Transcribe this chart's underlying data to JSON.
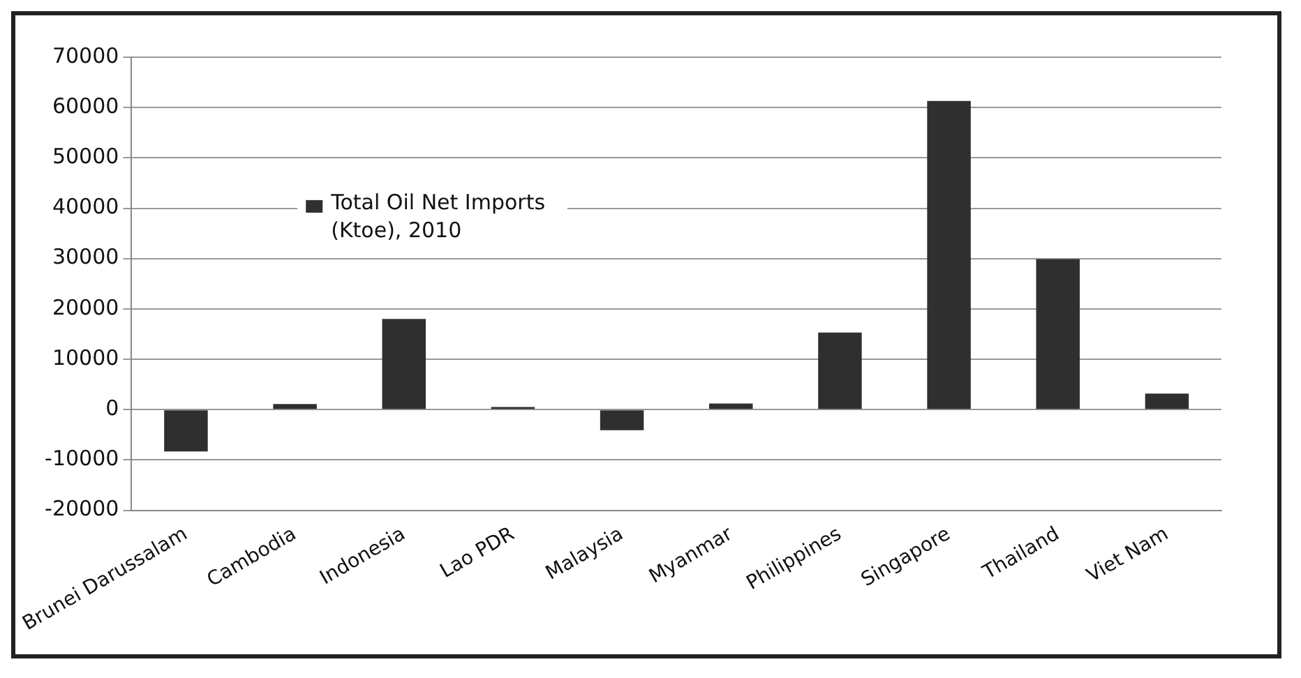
{
  "chart_data": {
    "type": "bar",
    "categories": [
      "Brunei Darussalam",
      "Cambodia",
      "Indonesia",
      "Lao PDR",
      "Malaysia",
      "Myanmar",
      "Philippines",
      "Singapore",
      "Thailand",
      "Viet Nam"
    ],
    "series": [
      {
        "name": "Total Oil Net Imports (Ktoe), 2010",
        "color": "#2f2f2f",
        "values": [
          -8300,
          1100,
          18000,
          500,
          -4100,
          1200,
          15300,
          61300,
          29900,
          3200
        ]
      }
    ],
    "ylim": [
      -20000,
      70000
    ],
    "yticks": [
      -20000,
      -10000,
      0,
      10000,
      20000,
      30000,
      40000,
      50000,
      60000,
      70000
    ],
    "grid": "y",
    "legend": "center"
  }
}
